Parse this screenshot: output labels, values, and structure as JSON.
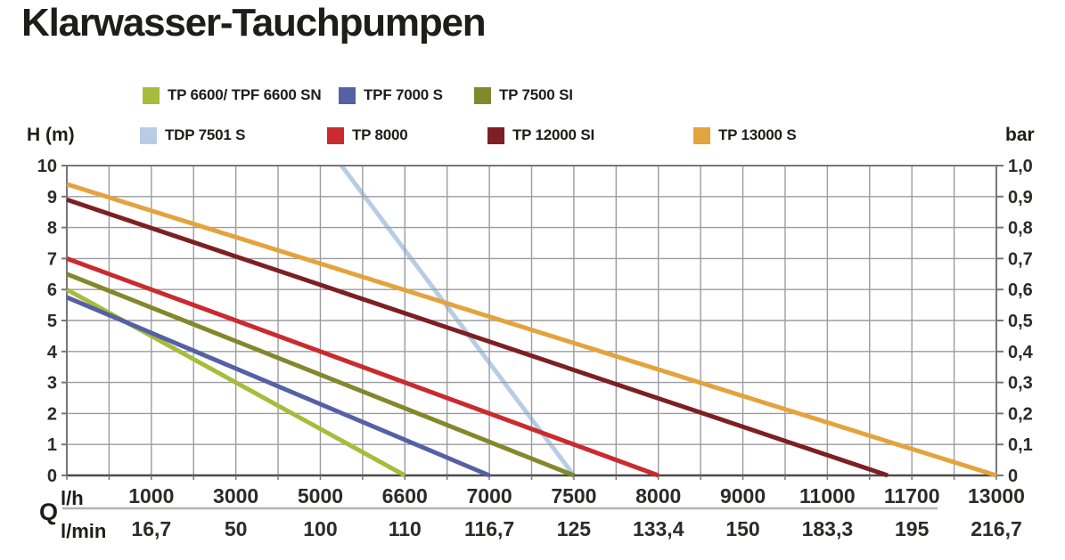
{
  "title": "Klarwasser-Tauchpumpen",
  "legend": {
    "rows": [
      {
        "items": [
          {
            "label": "TP 6600/ TPF 6600 SN",
            "color": "#a6bd3c"
          },
          {
            "label": "TPF 7000 S",
            "color": "#5560a5"
          },
          {
            "label": "TP 7500 SI",
            "color": "#82882b"
          }
        ]
      },
      {
        "items": [
          {
            "label": "TDP 7501 S",
            "color": "#b7cde6"
          },
          {
            "label": "TP 8000",
            "color": "#c92b2e"
          },
          {
            "label": "TP 12000 SI",
            "color": "#7d1f23"
          },
          {
            "label": "TP 13000 S",
            "color": "#e3a33d"
          }
        ]
      }
    ]
  },
  "chart_data": {
    "type": "line",
    "title": "Klarwasser-Tauchpumpen",
    "grid": true,
    "legend_position": "top",
    "x_axis": {
      "quantity_label": "Q",
      "row_top_label": "l/h",
      "row_bottom_label": "l/min",
      "tick_values": [
        1000,
        3000,
        5000,
        6600,
        7000,
        7500,
        8000,
        9000,
        11000,
        11700,
        13000
      ],
      "ticks_lh": [
        "1000",
        "3000",
        "5000",
        "6600",
        "7000",
        "7500",
        "8000",
        "9000",
        "11000",
        "11700",
        "13000"
      ],
      "ticks_lmin": [
        "16,7",
        "50",
        "100",
        "110",
        "116,7",
        "125",
        "133,4",
        "150",
        "183,3",
        "195",
        "216,7"
      ]
    },
    "y_axis_left": {
      "label": "H (m)",
      "range": [
        0,
        10
      ],
      "ticks": [
        "10",
        "9",
        "8",
        "7",
        "6",
        "5",
        "4",
        "3",
        "2",
        "1",
        "0"
      ]
    },
    "y_axis_right": {
      "label": "bar",
      "range": [
        0,
        1.0
      ],
      "ticks": [
        "1,0",
        "0,9",
        "0,8",
        "0,7",
        "0,6",
        "0,5",
        "0,4",
        "0,3",
        "0,2",
        "0,1",
        "0"
      ]
    },
    "series": [
      {
        "name": "TDP 7501 S",
        "color": "#b7cde6",
        "behind_grid": true,
        "points_q_h": [
          [
            5400,
            10.0
          ],
          [
            7500,
            0
          ]
        ]
      },
      {
        "name": "TP 6600/ TPF 6600 SN",
        "color": "#a6bd3c",
        "behind_grid": false,
        "points_q_h": [
          [
            0,
            6.0
          ],
          [
            6600,
            0
          ]
        ]
      },
      {
        "name": "TPF 7000 S",
        "color": "#5560a5",
        "behind_grid": false,
        "points_q_h": [
          [
            0,
            5.75
          ],
          [
            7000,
            0
          ]
        ]
      },
      {
        "name": "TP 7500 SI",
        "color": "#82882b",
        "behind_grid": false,
        "points_q_h": [
          [
            0,
            6.5
          ],
          [
            7500,
            0
          ]
        ]
      },
      {
        "name": "TP 8000",
        "color": "#c92b2e",
        "behind_grid": false,
        "points_q_h": [
          [
            0,
            7.0
          ],
          [
            8000,
            0
          ]
        ]
      },
      {
        "name": "TP 12000 SI",
        "color": "#7d1f23",
        "behind_grid": false,
        "points_q_h": [
          [
            0,
            8.9
          ],
          [
            11500,
            0
          ]
        ]
      },
      {
        "name": "TP 13000 S",
        "color": "#e3a33d",
        "behind_grid": false,
        "points_q_h": [
          [
            0,
            9.4
          ],
          [
            13000,
            0
          ]
        ]
      }
    ],
    "style": {
      "grid_color": "#9c9ca0",
      "border_color": "#77777b",
      "bottom_axis_color": "#4a4a4e",
      "divider_color": "#b3b3b3",
      "line_width": 5
    }
  }
}
